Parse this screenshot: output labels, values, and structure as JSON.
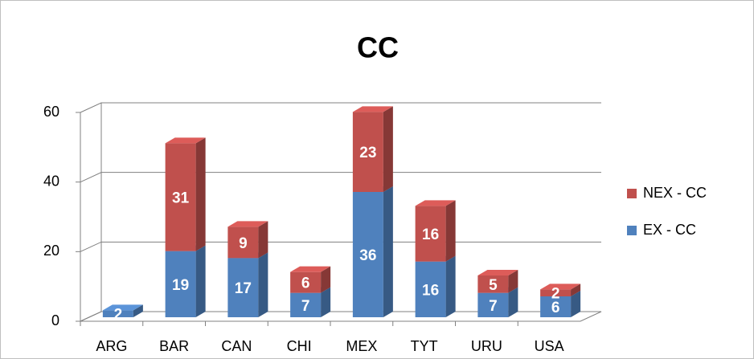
{
  "chart_data": {
    "type": "bar",
    "stacked": true,
    "title": "CC",
    "categories": [
      "ARG",
      "BAR",
      "CAN",
      "CHI",
      "MEX",
      "TYT",
      "URU",
      "USA"
    ],
    "series": [
      {
        "name": "EX - CC",
        "color": "#4f81bd",
        "values": [
          2,
          19,
          17,
          7,
          36,
          16,
          7,
          6
        ]
      },
      {
        "name": "NEX - CC",
        "color": "#c0504d",
        "values": [
          null,
          31,
          9,
          6,
          23,
          16,
          5,
          2
        ]
      }
    ],
    "ylim": [
      0,
      60
    ],
    "yticks": [
      0,
      20,
      40,
      60
    ],
    "grid": true,
    "legend": "right"
  }
}
